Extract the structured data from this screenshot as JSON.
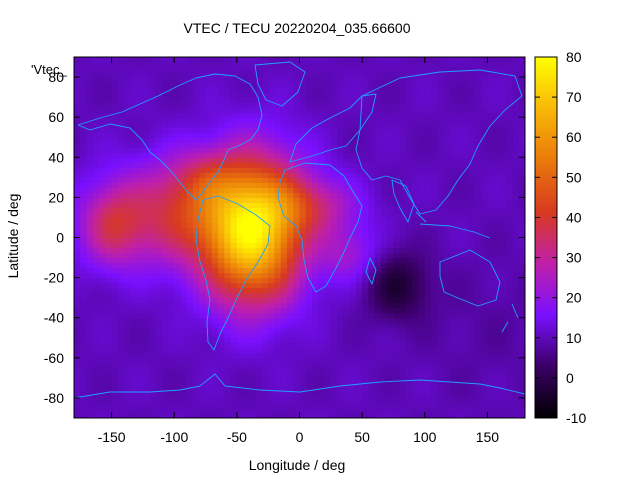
{
  "chart_data": {
    "type": "heatmap",
    "title": "VTEC / TECU 20220204_035.66600",
    "xlabel": "Longitude / deg",
    "ylabel": "Latitude / deg",
    "legend_label": "'Vtec_",
    "xlim": [
      -180,
      180
    ],
    "ylim": [
      -90,
      90
    ],
    "x_ticks": [
      -150,
      -100,
      -50,
      0,
      50,
      100,
      150
    ],
    "y_ticks": [
      -80,
      -60,
      -40,
      -20,
      0,
      20,
      40,
      60,
      80
    ],
    "colorbar": {
      "range": [
        -10,
        80
      ],
      "ticks": [
        -10,
        0,
        10,
        20,
        30,
        40,
        50,
        60,
        70,
        80
      ],
      "colors": [
        "#000000",
        "#3a0066",
        "#7a10ff",
        "#c020a8",
        "#d83a20",
        "#ea7a0a",
        "#f8b808",
        "#ffff00"
      ]
    },
    "background_level": 10,
    "features": [
      {
        "lon": -35,
        "lat": 8,
        "sigma_lon": 28,
        "sigma_lat": 24,
        "amp": 50
      },
      {
        "lon": -40,
        "lat": -12,
        "sigma_lon": 26,
        "sigma_lat": 20,
        "amp": 18
      },
      {
        "lon": -95,
        "lat": 12,
        "sigma_lon": 38,
        "sigma_lat": 18,
        "amp": 26
      },
      {
        "lon": -150,
        "lat": 6,
        "sigma_lon": 18,
        "sigma_lat": 14,
        "amp": 20
      },
      {
        "lon": 10,
        "lat": 16,
        "sigma_lon": 26,
        "sigma_lat": 10,
        "amp": 16
      },
      {
        "lon": 40,
        "lat": -8,
        "sigma_lon": 16,
        "sigma_lat": 10,
        "amp": 12
      },
      {
        "lon": -75,
        "lat": 30,
        "sigma_lon": 20,
        "sigma_lat": 10,
        "amp": 10
      },
      {
        "lon": 78,
        "lat": -24,
        "sigma_lon": 18,
        "sigma_lat": 12,
        "amp": -13
      },
      {
        "lon": 150,
        "lat": -45,
        "sigma_lon": 40,
        "sigma_lat": 25,
        "amp": -2
      }
    ],
    "grid": false,
    "coastline_color": "#1fa0ff"
  }
}
